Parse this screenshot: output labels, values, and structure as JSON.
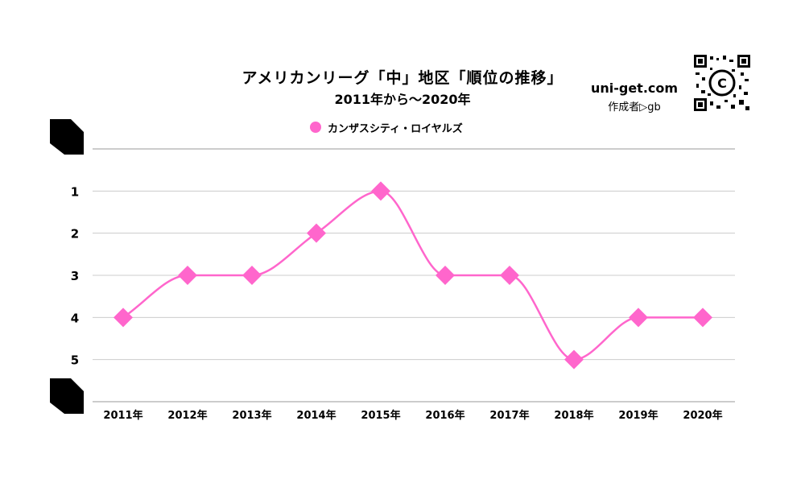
{
  "title": "アメリカンリーグ「中」地区「順位の推移」",
  "subtitle": "2011年から～2020年",
  "site": "uni-get.com",
  "author": "作成者▷gb",
  "qr_label": "C",
  "colors": {
    "series": "#ff66cc",
    "grid": "#cccccc"
  },
  "chart_data": {
    "type": "line",
    "categories": [
      "2011年",
      "2012年",
      "2013年",
      "2014年",
      "2015年",
      "2016年",
      "2017年",
      "2018年",
      "2019年",
      "2020年"
    ],
    "series": [
      {
        "name": "カンザスシティ・ロイヤルズ",
        "values": [
          4,
          3,
          3,
          2,
          1,
          3,
          3,
          5,
          4,
          4
        ],
        "marker": "diamond",
        "smooth": true
      }
    ],
    "y_ticks": [
      "1",
      "2",
      "3",
      "4",
      "5"
    ],
    "ylim": [
      0,
      6
    ],
    "y_reversed": true,
    "grid": true,
    "legend": "top-center"
  }
}
